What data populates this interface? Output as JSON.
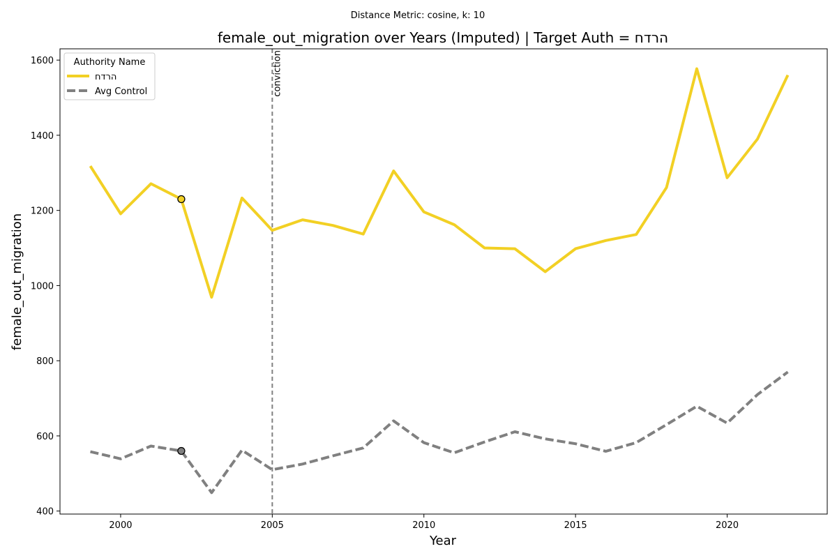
{
  "chart_data": {
    "type": "line",
    "suptitle": "Distance Metric: cosine, k: 10",
    "title": "female_out_migration over Years (Imputed) | Target Auth = הרדח",
    "xlabel": "Year",
    "ylabel": "female_out_migration",
    "xlim": [
      1998,
      2023.3
    ],
    "ylim": [
      392,
      1630
    ],
    "xticks": [
      2000,
      2005,
      2010,
      2015,
      2020
    ],
    "yticks": [
      400,
      600,
      800,
      1000,
      1200,
      1400,
      1600
    ],
    "grid": false,
    "legend": {
      "title": "Authority Name",
      "placement": "top-left"
    },
    "vline": {
      "x": 2005,
      "label": "conviction",
      "color": "#808080"
    },
    "x": [
      1999,
      2000,
      2001,
      2002,
      2003,
      2004,
      2005,
      2006,
      2007,
      2008,
      2009,
      2010,
      2011,
      2012,
      2013,
      2014,
      2015,
      2016,
      2017,
      2018,
      2019,
      2020,
      2021,
      2022
    ],
    "series": [
      {
        "name": "הרדח",
        "color": "#f2d024",
        "style": "solid",
        "values": [
          1318,
          1191,
          1271,
          1230,
          969,
          1233,
          1147,
          1175,
          1160,
          1137,
          1305,
          1196,
          1162,
          1100,
          1098,
          1037,
          1098,
          1120,
          1136,
          1261,
          1577,
          1287,
          1390,
          1560
        ],
        "marker": {
          "x": 2002,
          "y": 1230
        }
      },
      {
        "name": "Avg Control",
        "color": "#808080",
        "style": "dashed",
        "values": [
          558,
          539,
          573,
          560,
          449,
          562,
          510,
          525,
          547,
          568,
          640,
          582,
          555,
          584,
          611,
          592,
          579,
          559,
          582,
          630,
          679,
          634,
          710,
          770
        ],
        "marker": {
          "x": 2002,
          "y": 560
        }
      }
    ]
  }
}
